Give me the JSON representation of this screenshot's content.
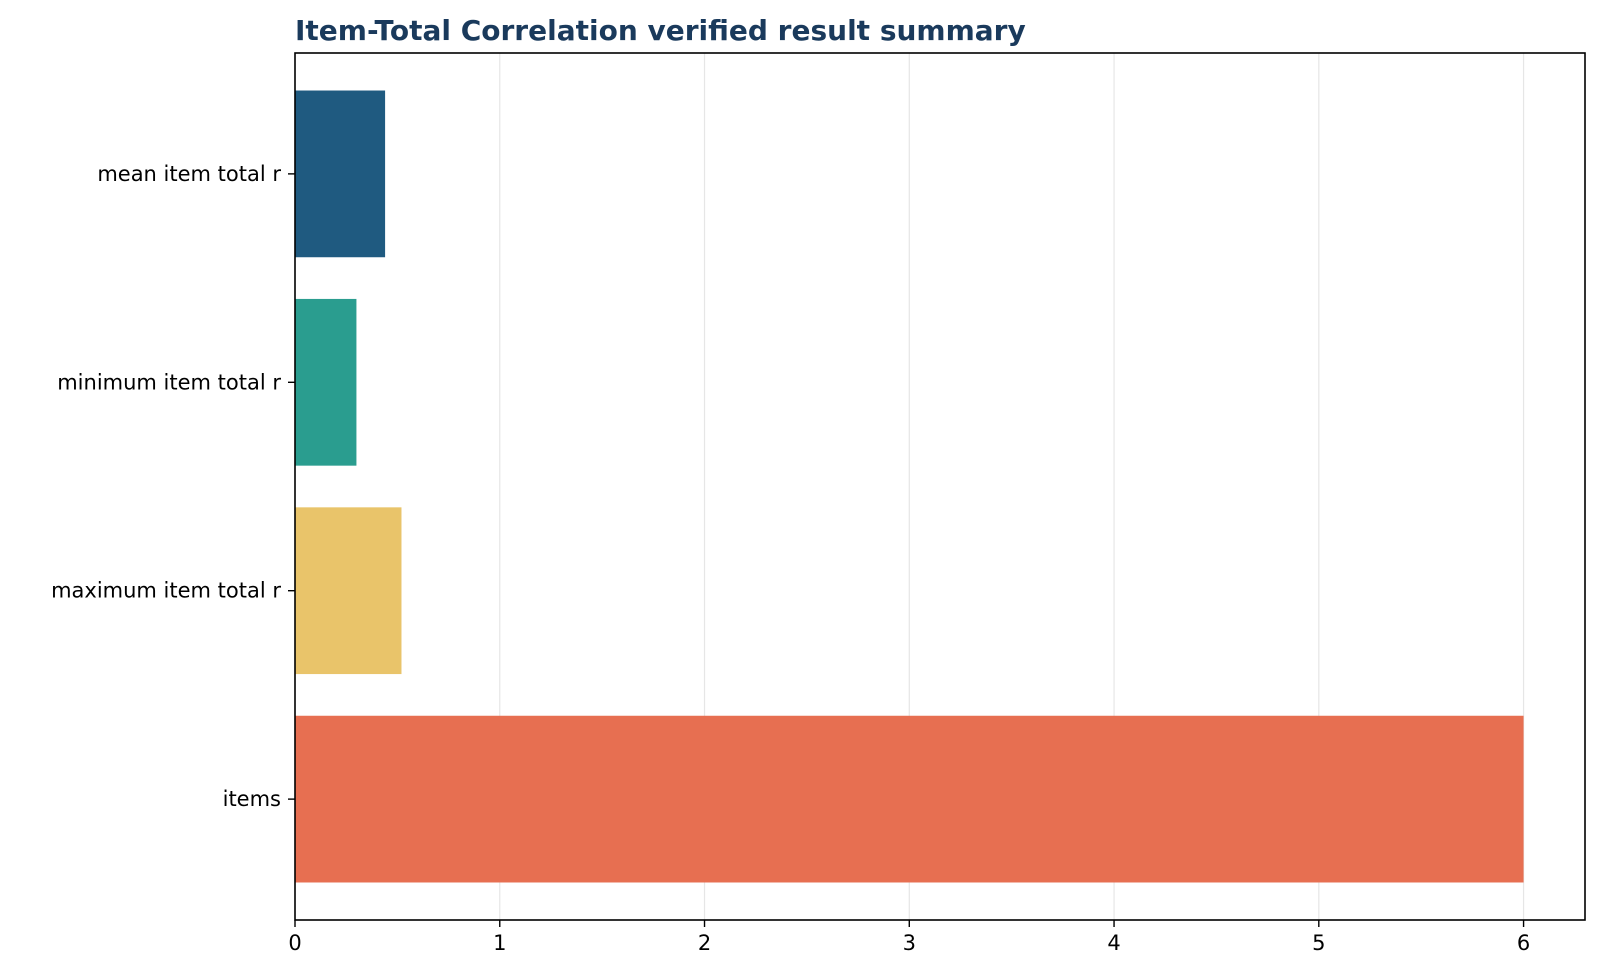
{
  "chart_data": {
    "type": "bar",
    "orientation": "horizontal",
    "title": "Item-Total Correlation verified result summary",
    "xlabel": "",
    "ylabel": "",
    "categories": [
      "mean item total r",
      "minimum item total r",
      "maximum item total r",
      "items"
    ],
    "values": [
      0.44,
      0.3,
      0.52,
      6
    ],
    "xlim": [
      0,
      6.3
    ],
    "xticks": [
      "0",
      "1",
      "2",
      "3",
      "4",
      "5",
      "6"
    ],
    "grid": "vertical",
    "legend": "none",
    "colors": [
      "#1f5a80",
      "#2a9d8f",
      "#e9c46a",
      "#e76f51"
    ],
    "title_color": "#1a3a5c",
    "grid_color": "#e6e6e6"
  }
}
